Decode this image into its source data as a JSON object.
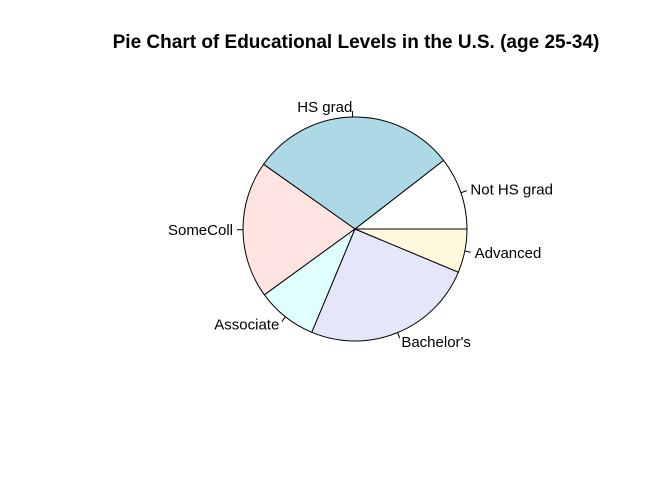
{
  "chart_data": {
    "type": "pie",
    "title": "Pie Chart of Educational Levels in the U.S. (age 25-34)",
    "start_angle_deg": 0,
    "direction": "counterclockwise",
    "slices": [
      {
        "label": "Not HS grad",
        "value": 10.5,
        "color": "#FFFFFF"
      },
      {
        "label": "HS grad",
        "value": 29.7,
        "color": "#ADD8E6"
      },
      {
        "label": "SomeColl",
        "value": 19.8,
        "color": "#FFE4E1"
      },
      {
        "label": "Associate",
        "value": 8.7,
        "color": "#E0FFFF"
      },
      {
        "label": "Bachelor's",
        "value": 25.0,
        "color": "#E6E6FA"
      },
      {
        "label": "Advanced",
        "value": 6.3,
        "color": "#FFF8DC"
      }
    ]
  }
}
